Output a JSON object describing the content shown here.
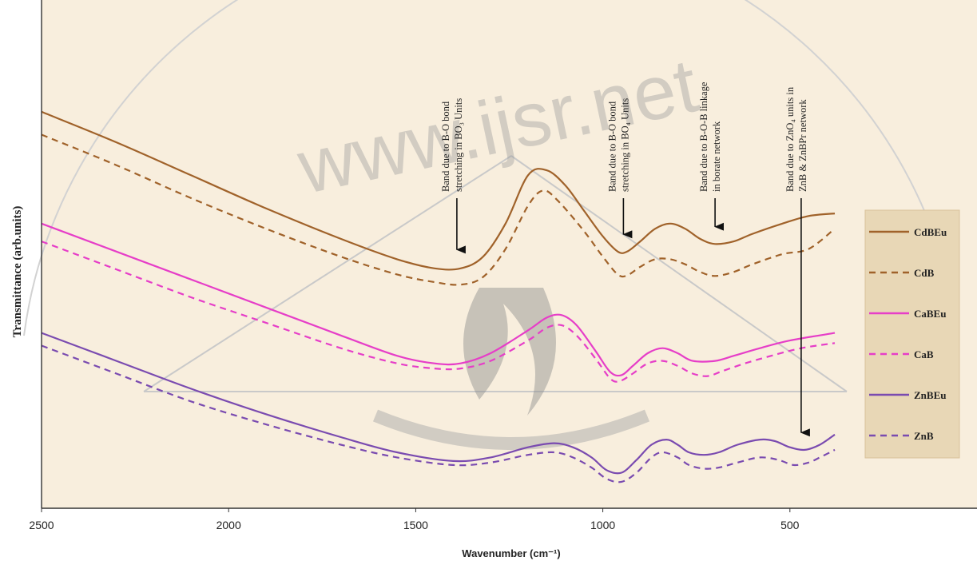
{
  "watermark": {
    "text": "www.ijsr.net"
  },
  "chart_data": {
    "type": "line",
    "xlabel": "Wavenumber (cm⁻¹)",
    "ylabel": "Transmittance (arb.units)",
    "xlim": [
      2500,
      0
    ],
    "x_ticks": [
      2500,
      2000,
      1500,
      1000,
      500
    ],
    "y_ticks_shown": false,
    "grid": false,
    "legend_position": "right",
    "colors": {
      "brown": "#a0622a",
      "magenta": "#e63ec8",
      "purple": "#7a4bb0",
      "background": "#f8eedd"
    },
    "series": [
      {
        "name": "CdBEu",
        "color": "#a0622a",
        "dash": "solid",
        "points": [
          [
            2500,
            0.78
          ],
          [
            2300,
            0.72
          ],
          [
            2100,
            0.655
          ],
          [
            1900,
            0.59
          ],
          [
            1700,
            0.53
          ],
          [
            1550,
            0.49
          ],
          [
            1450,
            0.472
          ],
          [
            1380,
            0.472
          ],
          [
            1320,
            0.495
          ],
          [
            1260,
            0.56
          ],
          [
            1200,
            0.655
          ],
          [
            1150,
            0.665
          ],
          [
            1100,
            0.635
          ],
          [
            1050,
            0.585
          ],
          [
            1000,
            0.535
          ],
          [
            960,
            0.505
          ],
          [
            935,
            0.505
          ],
          [
            900,
            0.525
          ],
          [
            860,
            0.55
          ],
          [
            820,
            0.56
          ],
          [
            780,
            0.55
          ],
          [
            740,
            0.53
          ],
          [
            700,
            0.52
          ],
          [
            650,
            0.525
          ],
          [
            600,
            0.54
          ],
          [
            520,
            0.56
          ],
          [
            450,
            0.575
          ],
          [
            380,
            0.58
          ]
        ]
      },
      {
        "name": "CdB",
        "color": "#a0622a",
        "dash": "dashed",
        "points": [
          [
            2500,
            0.735
          ],
          [
            2300,
            0.675
          ],
          [
            2100,
            0.61
          ],
          [
            1900,
            0.55
          ],
          [
            1700,
            0.495
          ],
          [
            1550,
            0.46
          ],
          [
            1450,
            0.445
          ],
          [
            1380,
            0.44
          ],
          [
            1320,
            0.455
          ],
          [
            1260,
            0.51
          ],
          [
            1200,
            0.595
          ],
          [
            1160,
            0.625
          ],
          [
            1120,
            0.605
          ],
          [
            1050,
            0.545
          ],
          [
            1000,
            0.495
          ],
          [
            960,
            0.46
          ],
          [
            935,
            0.458
          ],
          [
            900,
            0.475
          ],
          [
            860,
            0.49
          ],
          [
            820,
            0.49
          ],
          [
            780,
            0.48
          ],
          [
            740,
            0.465
          ],
          [
            700,
            0.457
          ],
          [
            650,
            0.465
          ],
          [
            600,
            0.48
          ],
          [
            520,
            0.5
          ],
          [
            450,
            0.51
          ],
          [
            380,
            0.55
          ]
        ]
      },
      {
        "name": "CaBEu",
        "color": "#e63ec8",
        "dash": "solid",
        "points": [
          [
            2500,
            0.56
          ],
          [
            2300,
            0.505
          ],
          [
            2100,
            0.45
          ],
          [
            1900,
            0.395
          ],
          [
            1700,
            0.34
          ],
          [
            1550,
            0.3
          ],
          [
            1450,
            0.285
          ],
          [
            1380,
            0.285
          ],
          [
            1300,
            0.305
          ],
          [
            1200,
            0.35
          ],
          [
            1150,
            0.375
          ],
          [
            1110,
            0.38
          ],
          [
            1070,
            0.36
          ],
          [
            1020,
            0.31
          ],
          [
            980,
            0.268
          ],
          [
            950,
            0.262
          ],
          [
            920,
            0.28
          ],
          [
            880,
            0.305
          ],
          [
            840,
            0.315
          ],
          [
            800,
            0.305
          ],
          [
            760,
            0.29
          ],
          [
            700,
            0.29
          ],
          [
            650,
            0.3
          ],
          [
            580,
            0.315
          ],
          [
            500,
            0.33
          ],
          [
            380,
            0.345
          ]
        ]
      },
      {
        "name": "CaB",
        "color": "#e63ec8",
        "dash": "dashed",
        "points": [
          [
            2500,
            0.525
          ],
          [
            2300,
            0.47
          ],
          [
            2100,
            0.415
          ],
          [
            1900,
            0.365
          ],
          [
            1700,
            0.315
          ],
          [
            1550,
            0.285
          ],
          [
            1450,
            0.275
          ],
          [
            1380,
            0.275
          ],
          [
            1300,
            0.29
          ],
          [
            1200,
            0.33
          ],
          [
            1150,
            0.355
          ],
          [
            1110,
            0.36
          ],
          [
            1070,
            0.34
          ],
          [
            1020,
            0.295
          ],
          [
            980,
            0.255
          ],
          [
            955,
            0.25
          ],
          [
            920,
            0.265
          ],
          [
            880,
            0.285
          ],
          [
            840,
            0.29
          ],
          [
            800,
            0.28
          ],
          [
            760,
            0.265
          ],
          [
            720,
            0.26
          ],
          [
            680,
            0.27
          ],
          [
            620,
            0.285
          ],
          [
            550,
            0.3
          ],
          [
            470,
            0.315
          ],
          [
            380,
            0.325
          ]
        ]
      },
      {
        "name": "ZnBEu",
        "color": "#7a4bb0",
        "dash": "solid",
        "points": [
          [
            2500,
            0.345
          ],
          [
            2300,
            0.29
          ],
          [
            2100,
            0.235
          ],
          [
            1900,
            0.185
          ],
          [
            1700,
            0.14
          ],
          [
            1550,
            0.11
          ],
          [
            1400,
            0.093
          ],
          [
            1300,
            0.1
          ],
          [
            1200,
            0.12
          ],
          [
            1130,
            0.128
          ],
          [
            1080,
            0.12
          ],
          [
            1030,
            0.1
          ],
          [
            990,
            0.075
          ],
          [
            950,
            0.07
          ],
          [
            910,
            0.095
          ],
          [
            870,
            0.125
          ],
          [
            830,
            0.135
          ],
          [
            800,
            0.125
          ],
          [
            770,
            0.11
          ],
          [
            730,
            0.105
          ],
          [
            690,
            0.11
          ],
          [
            640,
            0.125
          ],
          [
            580,
            0.135
          ],
          [
            540,
            0.132
          ],
          [
            500,
            0.12
          ],
          [
            460,
            0.115
          ],
          [
            420,
            0.125
          ],
          [
            380,
            0.145
          ]
        ]
      },
      {
        "name": "ZnB",
        "color": "#7a4bb0",
        "dash": "dashed",
        "points": [
          [
            2500,
            0.32
          ],
          [
            2300,
            0.265
          ],
          [
            2100,
            0.21
          ],
          [
            1900,
            0.165
          ],
          [
            1700,
            0.125
          ],
          [
            1550,
            0.1
          ],
          [
            1400,
            0.085
          ],
          [
            1300,
            0.09
          ],
          [
            1200,
            0.105
          ],
          [
            1130,
            0.11
          ],
          [
            1080,
            0.1
          ],
          [
            1030,
            0.08
          ],
          [
            990,
            0.058
          ],
          [
            950,
            0.052
          ],
          [
            910,
            0.07
          ],
          [
            870,
            0.1
          ],
          [
            840,
            0.11
          ],
          [
            800,
            0.1
          ],
          [
            770,
            0.085
          ],
          [
            730,
            0.078
          ],
          [
            690,
            0.08
          ],
          [
            640,
            0.09
          ],
          [
            580,
            0.1
          ],
          [
            530,
            0.095
          ],
          [
            490,
            0.085
          ],
          [
            450,
            0.09
          ],
          [
            420,
            0.1
          ],
          [
            380,
            0.115
          ]
        ]
      }
    ],
    "annotations": [
      {
        "lines": [
          "Band due to B-O bond",
          "stretching in BO₃ Units"
        ],
        "arrow_x": 1390,
        "arrow_y": 0.49
      },
      {
        "lines": [
          "Band due to B-O bond",
          "stretching in BO₄ Units"
        ],
        "arrow_x": 945,
        "arrow_y": 0.52
      },
      {
        "lines": [
          "Band due to B-O-B linkage",
          "in borate network"
        ],
        "arrow_x": 700,
        "arrow_y": 0.535
      },
      {
        "lines": [
          "Band due to ZnO₄ units in",
          "ZnB & ZnBPr network"
        ],
        "arrow_x": 470,
        "arrow_y": 0.13
      }
    ]
  }
}
